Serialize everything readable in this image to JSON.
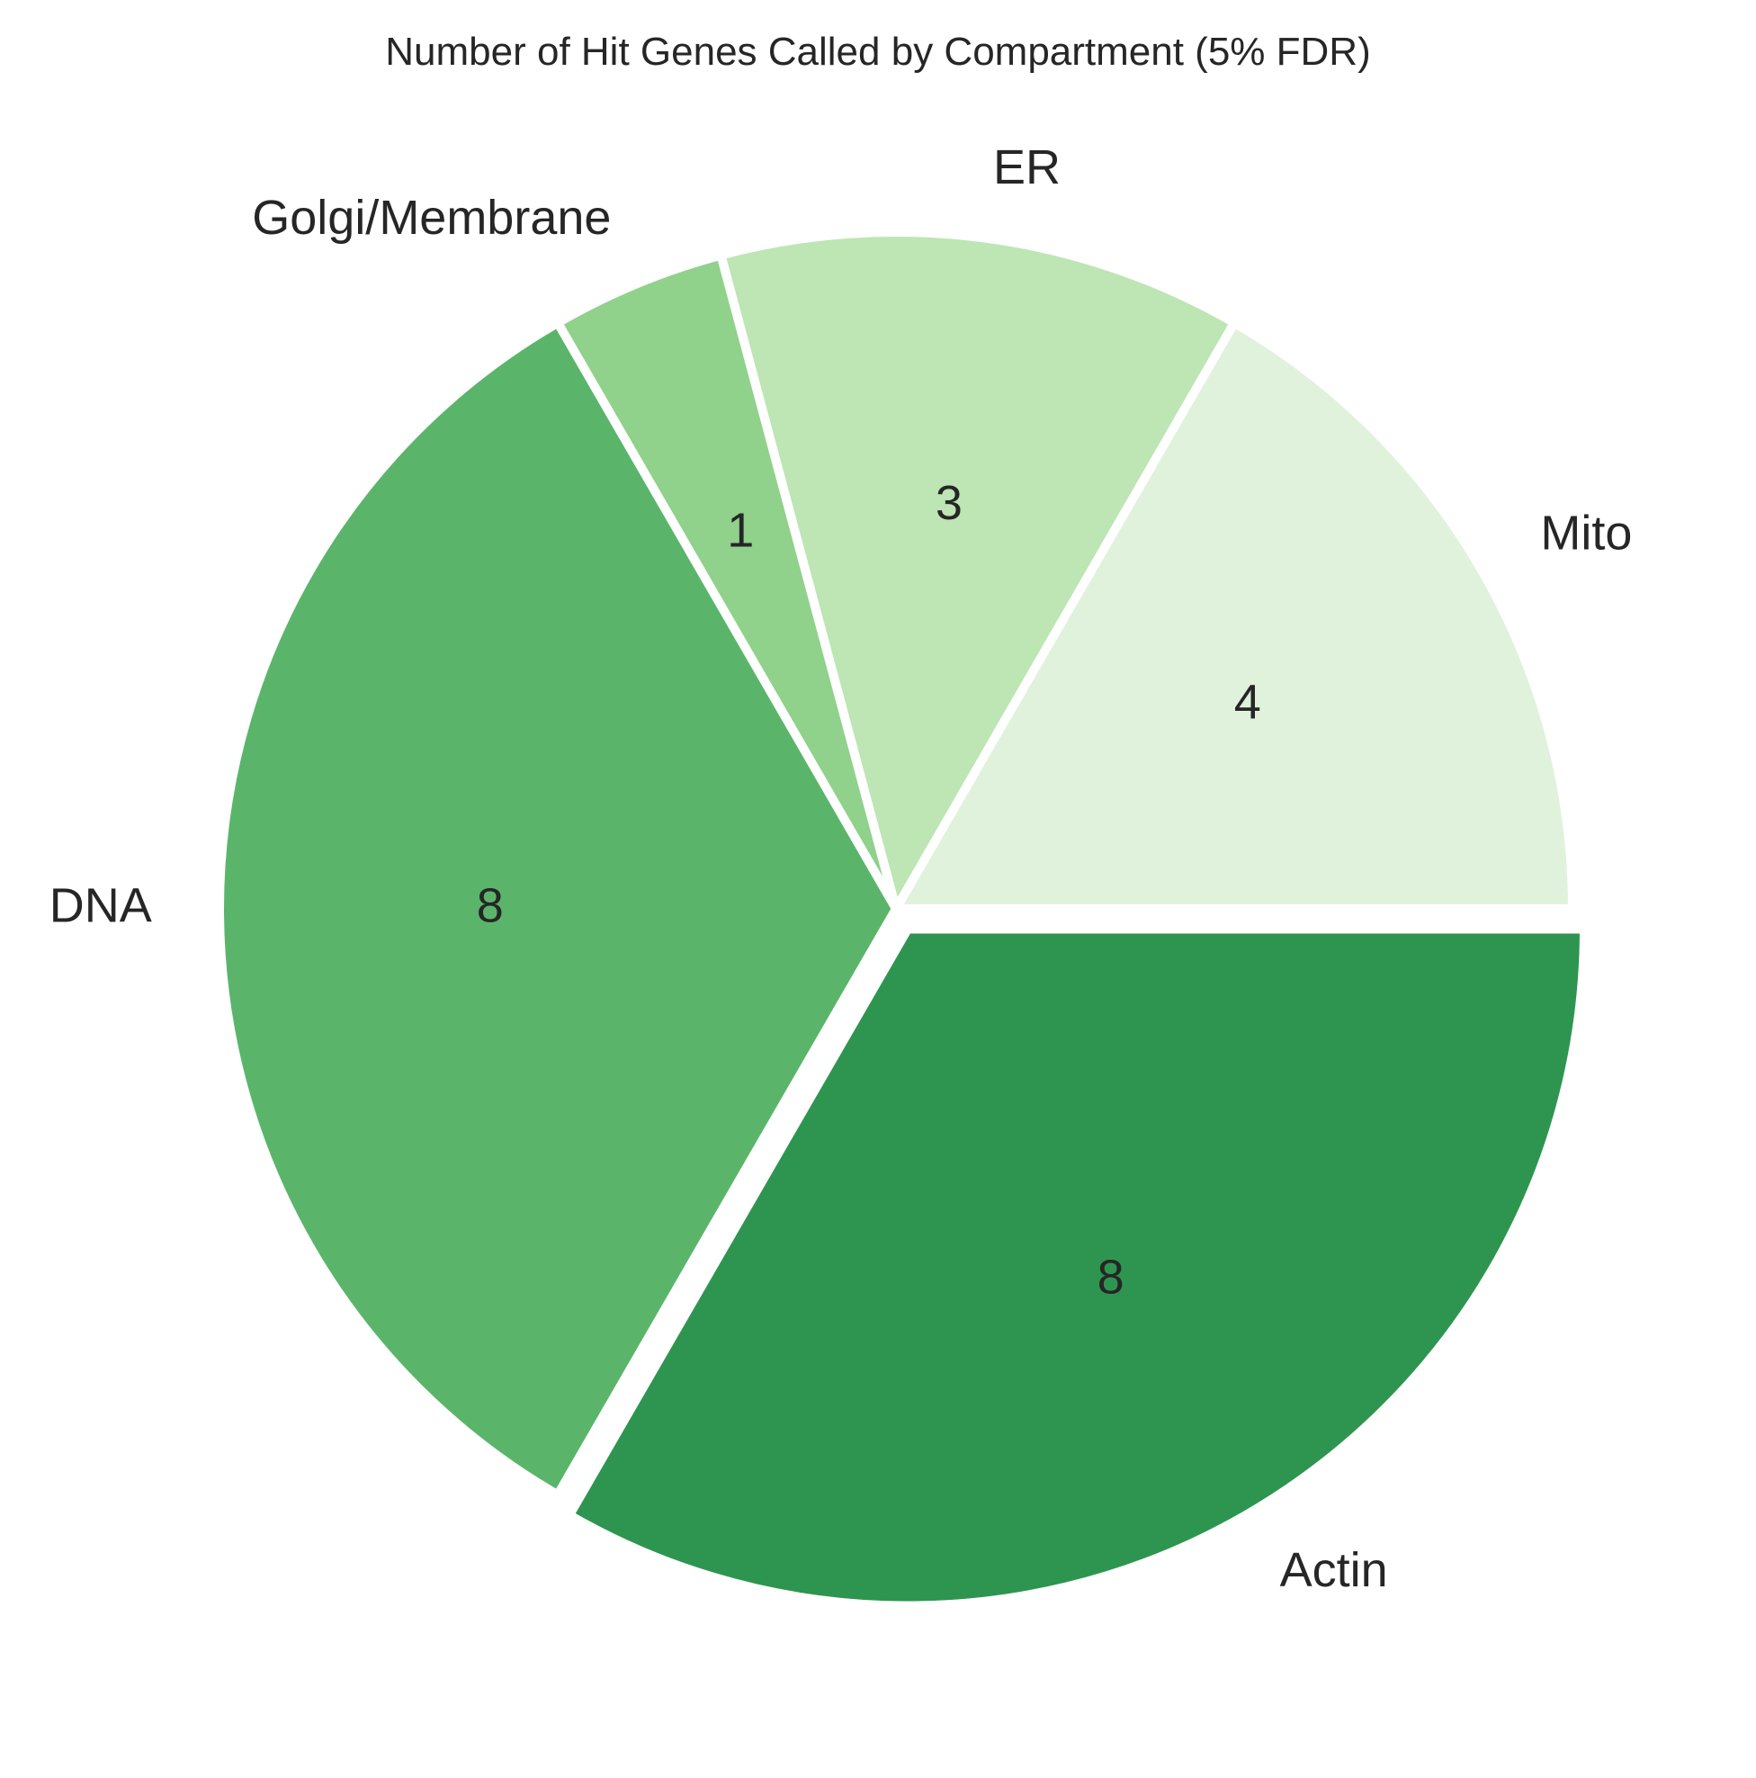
{
  "chart_data": {
    "type": "pie",
    "title": "Number of Hit Genes Called by Compartment (5% FDR)",
    "categories": [
      "Mito",
      "ER",
      "Golgi/Membrane",
      "DNA",
      "Actin"
    ],
    "values": [
      4,
      3,
      1,
      8,
      8
    ],
    "value_labels": [
      "4",
      "3",
      "1",
      "8",
      "8"
    ],
    "start_angle_deg": 0,
    "direction": "counterclockwise",
    "exploded": [
      "Actin"
    ],
    "colors": [
      "#e0f2dc",
      "#bee5b4",
      "#90d18b",
      "#5ab56b",
      "#2e9550"
    ],
    "legend": "none"
  }
}
